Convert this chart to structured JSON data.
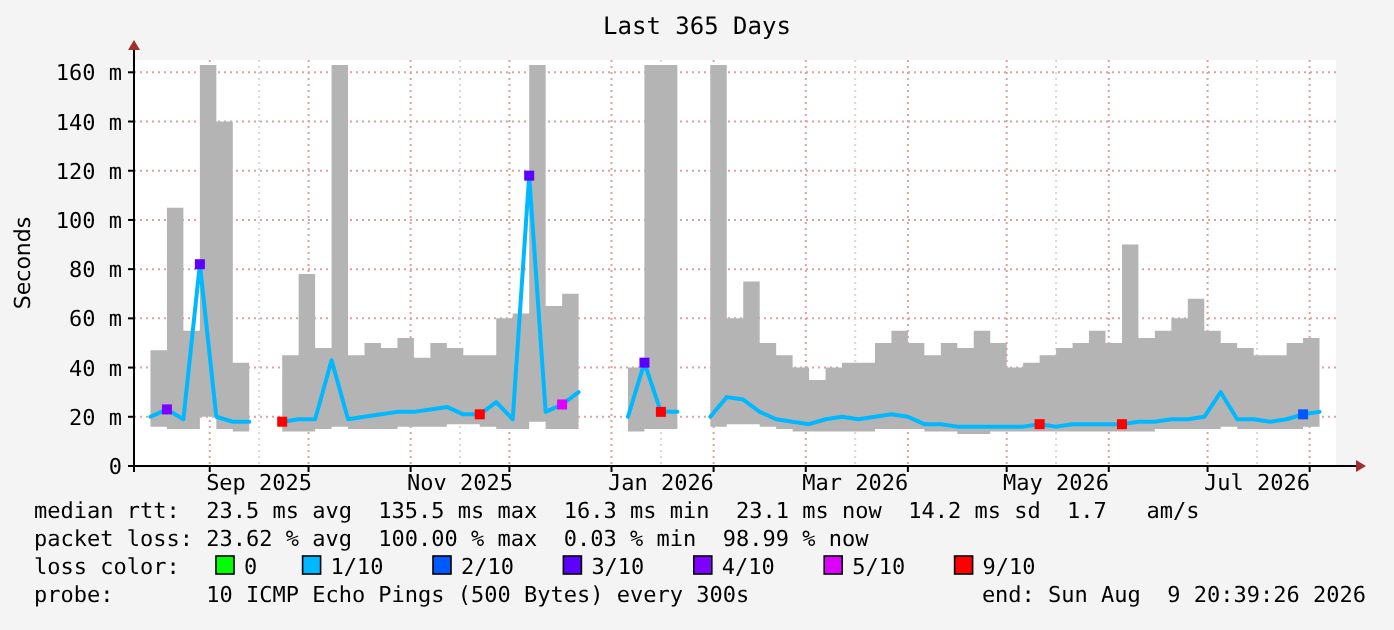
{
  "chart_data": {
    "type": "line",
    "title": "Last 365 Days",
    "ylabel": "Seconds",
    "legend_title": "loss color:",
    "legend": "bottom",
    "grid": true,
    "marker": "square",
    "line_style": "solid",
    "xlim": [
      "2025-08-09",
      "2026-08-09"
    ],
    "xticks": [
      {
        "value": "2025-09-01",
        "label": null
      },
      {
        "value": "2025-09-16",
        "label": "Sep 2025"
      },
      {
        "value": "2025-10-01",
        "label": null
      },
      {
        "value": "2025-11-01",
        "label": null
      },
      {
        "value": "2025-11-16",
        "label": "Nov 2025"
      },
      {
        "value": "2025-12-01",
        "label": null
      },
      {
        "value": "2026-01-01",
        "label": null
      },
      {
        "value": "2026-01-16",
        "label": "Jan 2026"
      },
      {
        "value": "2026-02-01",
        "label": null
      },
      {
        "value": "2026-03-01",
        "label": null
      },
      {
        "value": "2026-03-16",
        "label": "Mar 2026"
      },
      {
        "value": "2026-04-01",
        "label": null
      },
      {
        "value": "2026-05-01",
        "label": null
      },
      {
        "value": "2026-05-16",
        "label": "May 2026"
      },
      {
        "value": "2026-06-01",
        "label": null
      },
      {
        "value": "2026-07-01",
        "label": null
      },
      {
        "value": "2026-07-16",
        "label": "Jul 2026"
      },
      {
        "value": "2026-08-01",
        "label": null
      }
    ],
    "ylim": [
      0,
      165
    ],
    "yticks": [
      0,
      {
        "value": 20,
        "label": "20 m"
      },
      {
        "value": 40,
        "label": "40 m"
      },
      {
        "value": 60,
        "label": "60 m"
      },
      {
        "value": 80,
        "label": "80 m"
      },
      {
        "value": 100,
        "label": "100 m"
      },
      {
        "value": 120,
        "label": "120 m"
      },
      {
        "value": 140,
        "label": "140 m"
      },
      {
        "value": 160,
        "label": "160 m"
      }
    ],
    "x": [
      "2025-08-14",
      "2025-08-19",
      "2025-08-24",
      "2025-08-29",
      "2025-09-03",
      "2025-09-08",
      "2025-09-13",
      "2025-09-18",
      "2025-09-23",
      "2025-09-28",
      "2025-10-03",
      "2025-10-08",
      "2025-10-13",
      "2025-10-18",
      "2025-10-23",
      "2025-10-28",
      "2025-11-02",
      "2025-11-07",
      "2025-11-12",
      "2025-11-17",
      "2025-11-22",
      "2025-11-27",
      "2025-12-02",
      "2025-12-07",
      "2025-12-12",
      "2025-12-17",
      "2025-12-22",
      "2025-12-27",
      "2026-01-01",
      "2026-01-06",
      "2026-01-11",
      "2026-01-16",
      "2026-01-21",
      "2026-01-26",
      "2026-01-31",
      "2026-02-05",
      "2026-02-10",
      "2026-02-15",
      "2026-02-20",
      "2026-02-25",
      "2026-03-02",
      "2026-03-07",
      "2026-03-12",
      "2026-03-17",
      "2026-03-22",
      "2026-03-27",
      "2026-04-01",
      "2026-04-06",
      "2026-04-11",
      "2026-04-16",
      "2026-04-21",
      "2026-04-26",
      "2026-05-01",
      "2026-05-06",
      "2026-05-11",
      "2026-05-16",
      "2026-05-21",
      "2026-05-26",
      "2026-05-31",
      "2026-06-05",
      "2026-06-10",
      "2026-06-15",
      "2026-06-20",
      "2026-06-25",
      "2026-06-30",
      "2026-07-05",
      "2026-07-10",
      "2026-07-15",
      "2026-07-20",
      "2026-07-25",
      "2026-07-30",
      "2026-08-04"
    ],
    "series": [
      {
        "name": "0",
        "type": "scatter",
        "color": "#00ff00",
        "values": [
          null,
          null,
          null,
          null,
          null,
          null,
          null,
          null,
          null,
          null,
          null,
          null,
          null,
          null,
          null,
          null,
          null,
          null,
          null,
          null,
          null,
          null,
          null,
          null,
          null,
          null,
          null,
          null,
          null,
          null,
          null,
          null,
          null,
          null,
          null,
          null,
          null,
          null,
          null,
          null,
          null,
          null,
          null,
          null,
          null,
          null,
          null,
          null,
          null,
          null,
          null,
          null,
          null,
          null,
          null,
          null,
          null,
          null,
          null,
          null,
          null,
          null,
          null,
          null,
          null,
          null,
          null,
          null,
          null,
          null,
          null,
          null
        ]
      },
      {
        "name": "1/10",
        "color": "#00b8ff",
        "marker": "none",
        "values": [
          20,
          23,
          19,
          82,
          20,
          18,
          18,
          null,
          18,
          19,
          19,
          43,
          19,
          20,
          21,
          22,
          22,
          23,
          24,
          21,
          21,
          26,
          19,
          118,
          22,
          25,
          30,
          null,
          null,
          20,
          42,
          22,
          22,
          null,
          20,
          28,
          27,
          22,
          19,
          18,
          17,
          19,
          20,
          19,
          20,
          21,
          20,
          17,
          17,
          16,
          16,
          16,
          16,
          16,
          17,
          16,
          17,
          17,
          17,
          17,
          18,
          18,
          19,
          19,
          20,
          30,
          19,
          19,
          18,
          19,
          21,
          22
        ],
        "lower": [
          16,
          15,
          15,
          20,
          15,
          14,
          14,
          null,
          14,
          14,
          15,
          16,
          15,
          15,
          15,
          16,
          16,
          16,
          17,
          17,
          16,
          15,
          15,
          18,
          15,
          15,
          15,
          null,
          null,
          14,
          15,
          15,
          16,
          null,
          16,
          17,
          17,
          16,
          15,
          14,
          14,
          14,
          14,
          14,
          15,
          15,
          15,
          14,
          14,
          13,
          13,
          14,
          14,
          14,
          14,
          14,
          14,
          14,
          14,
          14,
          14,
          15,
          15,
          15,
          15,
          16,
          15,
          15,
          15,
          15,
          16,
          16
        ],
        "upper": [
          47,
          105,
          55,
          163,
          140,
          42,
          42,
          null,
          45,
          78,
          48,
          163,
          45,
          50,
          48,
          52,
          44,
          50,
          48,
          45,
          45,
          60,
          62,
          163,
          65,
          70,
          163,
          null,
          null,
          40,
          163,
          163,
          163,
          null,
          163,
          60,
          75,
          50,
          45,
          40,
          35,
          40,
          42,
          42,
          50,
          55,
          50,
          45,
          50,
          48,
          55,
          50,
          40,
          42,
          45,
          48,
          50,
          55,
          50,
          90,
          52,
          55,
          60,
          68,
          55,
          50,
          48,
          45,
          45,
          50,
          52,
          60
        ]
      },
      {
        "name": "2/10",
        "type": "scatter",
        "color": "#0059ff",
        "x": [
          "2026-07-30"
        ],
        "values": [
          21
        ]
      },
      {
        "name": "3/10",
        "type": "scatter",
        "color": "#5e00ff",
        "x": [
          "2025-08-29",
          "2025-12-07",
          "2026-01-11"
        ],
        "values": [
          82,
          118,
          42
        ]
      },
      {
        "name": "4/10",
        "type": "scatter",
        "color": "#7e00ff",
        "x": [
          "2025-08-19"
        ],
        "values": [
          23
        ]
      },
      {
        "name": "5/10",
        "type": "scatter",
        "color": "#dd00ff",
        "x": [
          "2025-12-17"
        ],
        "values": [
          25
        ]
      },
      {
        "name": "9/10",
        "type": "scatter",
        "color": "#ff0000",
        "x": [
          "2025-09-23",
          "2025-11-22",
          "2026-01-16",
          "2026-05-11",
          "2026-06-05"
        ],
        "values": [
          18,
          21,
          22,
          17,
          17
        ]
      }
    ],
    "annotations": [
      "median rtt:  23.5 ms avg  135.5 ms max  16.3 ms min  23.1 ms now  14.2 ms sd  1.7   am/s",
      "packet loss: 23.62 % avg  100.00 % max  0.03 % min  98.99 % now",
      "probe:       10 ICMP Echo Pings (500 Bytes) every 300s",
      "end: Sun Aug  9 20:39:26 2026"
    ]
  }
}
